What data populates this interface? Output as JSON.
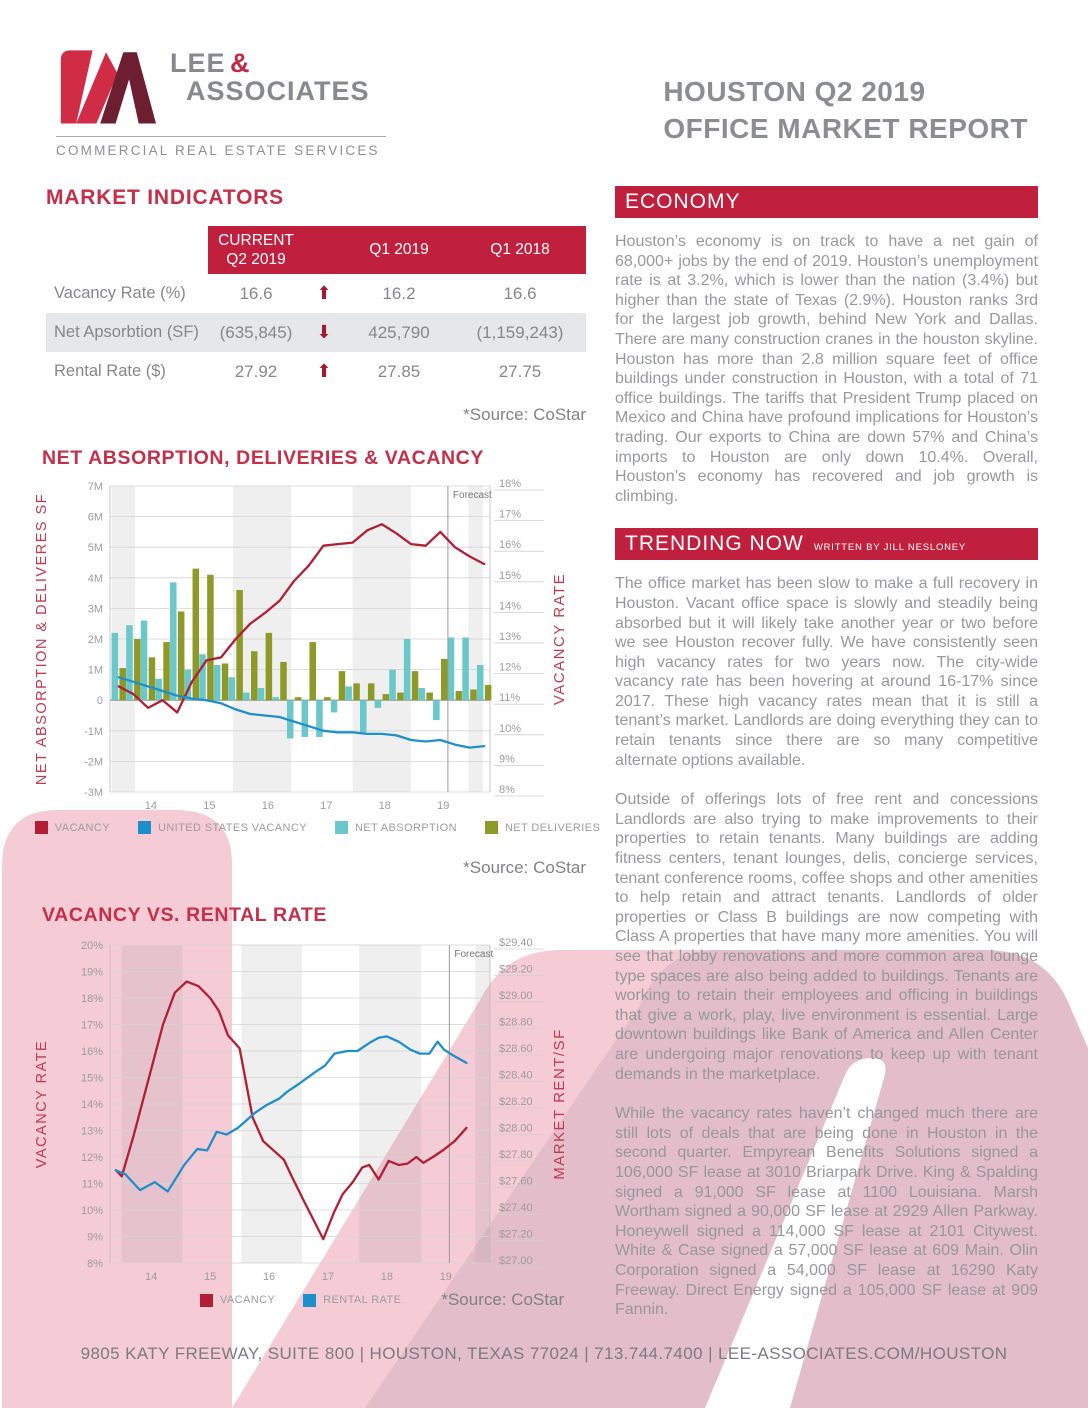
{
  "header": {
    "logo": {
      "lee": "LEE",
      "amp": "&",
      "associates": "ASSOCIATES",
      "tagline": "COMMERCIAL REAL ESTATE SERVICES"
    },
    "title_line1": "HOUSTON Q2 2019",
    "title_line2": "OFFICE MARKET REPORT"
  },
  "market_indicators": {
    "title": "MARKET INDICATORS",
    "columns": [
      "CURRENT\nQ2 2019",
      "Q1 2019",
      "Q1 2018"
    ],
    "rows": [
      {
        "label": "Vacancy Rate (%)",
        "current": "16.6",
        "trend": "up",
        "glyph": "⬆",
        "q1_2019": "16.2",
        "q1_2018": "16.6"
      },
      {
        "label": "Net Apsorbtion (SF)",
        "current": "(635,845)",
        "trend": "down",
        "glyph": "⬇",
        "q1_2019": "425,790",
        "q1_2018": "(1,159,243)"
      },
      {
        "label": "Rental Rate ($)",
        "current": "27.92",
        "trend": "up",
        "glyph": "⬆",
        "q1_2019": "27.85",
        "q1_2018": "27.75"
      }
    ],
    "source": "*Source: CoStar"
  },
  "economy": {
    "heading": "ECONOMY",
    "body": "Houston’s economy is on track to have a net gain of 68,000+ jobs by the end of 2019. Houston’s unemployment rate is at 3.2%, which is lower than the nation (3.4%) but higher than the state of Texas (2.9%). Houston ranks 3rd for the largest job growth, behind New York and Dallas. There are many construction cranes in the houston skyline. Houston has more than 2.8 million square feet of office buildings under construction in Houston, with a total of 71 office buildings. The tariffs that President Trump placed on Mexico and China have profound implications for Houston’s trading. Our exports to China are down 57% and China’s imports to Houston are only down 10.4%. Overall, Houston’s economy has recovered and job growth is climbing."
  },
  "trending": {
    "heading": "TRENDING NOW",
    "byline": "WRITTEN BY  JILL NESLONEY",
    "paragraphs": [
      "The office market has been slow to make a full recovery in Houston.  Vacant office space is slowly and steadily being absorbed but it will likely take another year or two before we see Houston recover fully.  We have consistently seen high vacancy rates for two years now.   The city-wide vacancy rate has been hovering at around 16-17% since 2017. These high vacancy rates mean that it is still a tenant’s market.  Landlords are doing everything they can to retain tenants since there are so many competitive alternate options available.",
      "Outside of offerings lots of free rent and concessions Landlords are also trying to make improvements to their properties to retain tenants. Many buildings are adding fitness centers, tenant lounges, delis, concierge services, tenant conference rooms, coffee shops and other amenities to help retain and attract tenants. Landlords of older properties or Class B buildings are now competing with Class A properties that have many more amenities. You will see that lobby renovations and more common area lounge type spaces are also being added to buildings. Tenants are working to retain their employees and officing in buildings that give a work, play, live environment is essential. Large downtown buildings like Bank of America and Allen Center are undergoing major renovations to keep up with tenant demands in the marketplace.",
      "While the vacancy rates haven’t changed much there are still lots of deals that are being done in Houston in the second quarter. Empyrean Benefits Solutions signed a 106,000 SF lease at 3010 Briarpark Drive.  King & Spalding signed a 91,000 SF lease at 1100 Louisiana. Marsh Wortham signed a 90,000 SF lease at 2929 Allen Parkway.  Honeywell signed a 114,000 SF lease at 2101 Citywest.  White & Case signed a 57,000 SF lease at 609 Main.  Olin Corporation signed a 54,000 SF lease at 16290 Katy Freeway.  Direct Energy signed a 105,000 SF lease at 909 Fannin."
    ]
  },
  "footer": {
    "text": "9805 KATY FREEWAY, SUITE 800 | HOUSTON, TEXAS 77024 | 713.744.7400 | LEE-ASSOCIATES.COM/HOUSTON"
  },
  "chart_data": [
    {
      "type": "combo_bar_line",
      "title": "NET ABSORPTION, DELIVERIES & VACANCY",
      "source": "*Source: CoStar",
      "forecast_label": "Forecast",
      "forecast_x": 19.08,
      "x_range": [
        13.3,
        19.8
      ],
      "x_tick_vals": [
        14,
        15,
        16,
        17,
        18,
        19
      ],
      "x_tick_labels": [
        "14",
        "15",
        "16",
        "17",
        "18",
        "19"
      ],
      "bands": [
        [
          13.33,
          13.73
        ],
        [
          15.4,
          16.4
        ],
        [
          17.45,
          18.45
        ],
        [
          19.43,
          19.68
        ]
      ],
      "left_axis": {
        "label": "NET ABSORPTION & DELIVERES SF",
        "min": -3,
        "max": 7,
        "step": 1,
        "tick_labels": [
          "-3M",
          "-2M",
          "-1M",
          "0",
          "1M",
          "2M",
          "3M",
          "4M",
          "5M",
          "6M",
          "7M"
        ]
      },
      "right_axis": {
        "label": "VACANCY RATE",
        "min": 8,
        "max": 18,
        "step": 1,
        "tick_labels": [
          "8%",
          "9%",
          "10%",
          "11%",
          "12%",
          "13%",
          "14%",
          "15%",
          "16%",
          "17%",
          "18%"
        ]
      },
      "bar_quarter_start": 13.45,
      "bar_quarter_step": 0.25,
      "bar_units": "millions SF",
      "bar_series": [
        {
          "name": "NET ABSORPTION",
          "color": "#6ac7ca",
          "values": [
            2.2,
            2.45,
            2.6,
            0.7,
            3.85,
            1.0,
            1.5,
            1.15,
            0.75,
            0.25,
            0.4,
            0.1,
            -1.25,
            -1.2,
            -1.2,
            -0.4,
            0.45,
            -1.05,
            -0.25,
            1.0,
            2.0,
            0.4,
            -0.65,
            2.05,
            2.05,
            1.15
          ]
        },
        {
          "name": "NET DELIVERIES",
          "color": "#8e9a27",
          "values": [
            1.05,
            2.0,
            1.4,
            1.9,
            2.9,
            4.3,
            4.1,
            1.2,
            3.6,
            1.6,
            2.2,
            1.25,
            0.1,
            1.9,
            0.1,
            0.95,
            0.55,
            0.55,
            0.2,
            0.25,
            0.95,
            0.25,
            1.35,
            0.3,
            0.35,
            0.5
          ]
        }
      ],
      "line_series": [
        {
          "name": "VACANCY",
          "color": "#b01f35",
          "axis": "right",
          "x": [
            13.45,
            13.7,
            13.95,
            14.2,
            14.45,
            14.7,
            14.95,
            15.2,
            15.45,
            15.7,
            15.95,
            16.2,
            16.45,
            16.7,
            16.95,
            17.2,
            17.45,
            17.7,
            17.95,
            18.2,
            18.45,
            18.7,
            18.95,
            19.2,
            19.45,
            19.7
          ],
          "y": [
            11.45,
            11.2,
            10.75,
            11.0,
            10.6,
            11.6,
            12.3,
            12.4,
            13.0,
            13.5,
            13.85,
            14.25,
            14.9,
            15.4,
            16.05,
            16.1,
            16.15,
            16.55,
            16.75,
            16.45,
            16.1,
            16.05,
            16.5,
            16.0,
            15.7,
            15.45
          ]
        },
        {
          "name": "UNITED STATES VACANCY",
          "color": "#1f8fca",
          "axis": "right",
          "x": [
            13.45,
            13.7,
            13.95,
            14.2,
            14.45,
            14.7,
            14.95,
            15.2,
            15.45,
            15.7,
            15.95,
            16.2,
            16.45,
            16.7,
            16.95,
            17.2,
            17.45,
            17.7,
            17.95,
            18.2,
            18.45,
            18.7,
            18.95,
            19.2,
            19.45,
            19.7
          ],
          "y": [
            11.75,
            11.6,
            11.45,
            11.3,
            11.15,
            11.05,
            11.0,
            10.9,
            10.7,
            10.55,
            10.5,
            10.45,
            10.3,
            10.15,
            10.0,
            9.95,
            9.95,
            9.9,
            9.9,
            9.85,
            9.7,
            9.65,
            9.7,
            9.55,
            9.45,
            9.5
          ]
        }
      ],
      "legend": [
        {
          "label": "VACANCY",
          "color": "#b01f35"
        },
        {
          "label": "UNITED STATES VACANCY",
          "color": "#1f8fca"
        },
        {
          "label": "NET ABSORPTION",
          "color": "#6ac7ca"
        },
        {
          "label": "NET DELIVERIES",
          "color": "#8e9a27"
        }
      ]
    },
    {
      "type": "line",
      "title": "VACANCY VS. RENTAL RATE",
      "source": "*Source: CoStar",
      "forecast_label": "Forecast",
      "forecast_x": 19.06,
      "x_range": [
        13.3,
        19.75
      ],
      "x_tick_vals": [
        14,
        15,
        16,
        17,
        18,
        19
      ],
      "x_tick_labels": [
        "14",
        "15",
        "16",
        "17",
        "18",
        "19"
      ],
      "bands": [
        [
          13.5,
          14.53
        ],
        [
          15.53,
          16.56
        ],
        [
          17.53,
          18.58
        ],
        [
          19.5,
          19.75
        ]
      ],
      "left_axis": {
        "label": "VACANCY RATE",
        "min": 8,
        "max": 20,
        "step": 1,
        "tick_labels": [
          "8%",
          "9%",
          "10%",
          "11%",
          "12%",
          "13%",
          "14%",
          "15%",
          "16%",
          "17%",
          "18%",
          "19%",
          "20%"
        ]
      },
      "right_axis": {
        "label": "MARKET RENT/SF",
        "min": 27.0,
        "max": 29.4,
        "step": 0.2,
        "tick_labels": [
          "$27.00",
          "$27.20",
          "$27.40",
          "$27.60",
          "$27.80",
          "$28.00",
          "$28.20",
          "$28.40",
          "$28.60",
          "$28.80",
          "$29.00",
          "$29.20",
          "$29.40"
        ]
      },
      "line_series": [
        {
          "name": "VACANCY",
          "color": "#b01f35",
          "axis": "left",
          "x": [
            13.4,
            13.5,
            13.7,
            13.95,
            14.2,
            14.4,
            14.6,
            14.8,
            15.0,
            15.15,
            15.3,
            15.5,
            15.72,
            15.9,
            16.05,
            16.25,
            16.4,
            16.6,
            16.92,
            17.1,
            17.25,
            17.42,
            17.58,
            17.7,
            17.86,
            18.03,
            18.2,
            18.35,
            18.5,
            18.62,
            18.78,
            18.95,
            19.15,
            19.35
          ],
          "y": [
            11.5,
            11.27,
            12.8,
            14.9,
            17.0,
            18.2,
            18.62,
            18.45,
            18.0,
            17.5,
            16.6,
            16.1,
            13.5,
            12.6,
            12.3,
            11.9,
            11.2,
            10.3,
            8.9,
            9.9,
            10.6,
            11.05,
            11.6,
            11.7,
            11.15,
            11.85,
            11.7,
            11.75,
            12.0,
            11.78,
            12.0,
            12.25,
            12.6,
            13.1
          ]
        },
        {
          "name": "RENTAL RATE",
          "color": "#1f8fca",
          "axis": "right",
          "x": [
            13.4,
            13.56,
            13.81,
            14.06,
            14.28,
            14.56,
            14.78,
            14.95,
            15.11,
            15.28,
            15.47,
            15.6,
            15.75,
            15.95,
            16.17,
            16.3,
            16.5,
            16.78,
            16.95,
            17.11,
            17.33,
            17.5,
            17.7,
            17.86,
            18.0,
            18.2,
            18.4,
            18.56,
            18.72,
            18.86,
            18.97,
            19.15,
            19.35
          ],
          "y": [
            27.7,
            27.67,
            27.55,
            27.61,
            27.54,
            27.74,
            27.86,
            27.85,
            27.99,
            27.97,
            28.02,
            28.07,
            28.13,
            28.19,
            28.24,
            28.29,
            28.35,
            28.44,
            28.49,
            28.58,
            28.6,
            28.6,
            28.66,
            28.7,
            28.71,
            28.67,
            28.61,
            28.58,
            28.58,
            28.67,
            28.61,
            28.56,
            28.51
          ]
        }
      ],
      "legend": [
        {
          "label": "VACANCY",
          "color": "#b01f35"
        },
        {
          "label": "RENTAL RATE",
          "color": "#1f8fca"
        }
      ]
    }
  ]
}
